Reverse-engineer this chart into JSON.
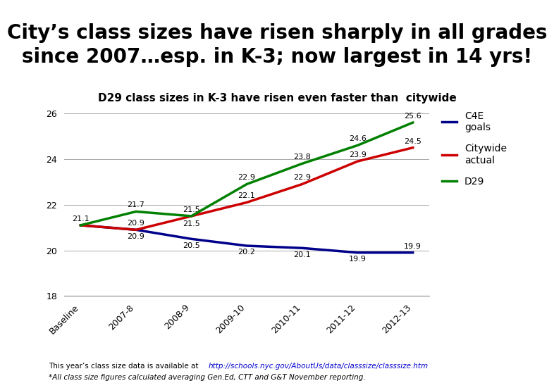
{
  "title_box": "City’s class sizes have risen sharply in all grades\nsince 2007…esp. in K-3; now largest in 14 yrs!",
  "subtitle": "D29 class sizes in K-3 have risen even faster than  citywide",
  "x_labels": [
    "Baseline",
    "2007-8",
    "2008-9",
    "2009-10",
    "2010-11",
    "2011-12",
    "2012-13"
  ],
  "c4e_goals": [
    21.1,
    20.9,
    20.5,
    20.2,
    20.1,
    19.9,
    19.9
  ],
  "citywide": [
    21.1,
    20.9,
    21.5,
    22.1,
    22.9,
    23.9,
    24.5
  ],
  "d29": [
    21.1,
    21.7,
    21.5,
    22.9,
    23.8,
    24.6,
    25.6
  ],
  "c4e_color": "#00008B",
  "citywide_color": "#CC0000",
  "d29_color": "#008000",
  "title_bg": "#B8CCE4",
  "bg_color": "#FFFFFF",
  "ylim": [
    18,
    26.5
  ],
  "yticks": [
    18,
    20,
    22,
    24,
    26
  ],
  "footer1": "This year’s class size data is available at ",
  "footer_link": "http://schools.nyc.gov/AboutUs/data/classsize/classsize.htm",
  "footer2": "*All class size figures calculated averaging Gen.Ed, CTT and G&T November reporting."
}
